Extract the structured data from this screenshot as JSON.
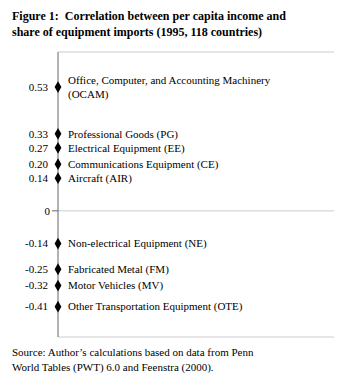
{
  "chart_data": {
    "type": "scatter",
    "title": "Figure 1:  Correlation between per capita income and\nshare of equipment imports (1995, 118 countries)",
    "categories": [
      "Office, Computer, and Accounting Machinery\n(OCAM)",
      "Professional Goods (PG)",
      "Electrical Equipment (EE)",
      "Communications Equipment (CE)",
      "Aircraft (AIR)",
      "Non-electrical Equipment (NE)",
      "Fabricated Metal (FM)",
      "Motor Vehicles (MV)",
      "Other Transportation Equipment (OTE)"
    ],
    "values": [
      0.53,
      0.33,
      0.27,
      0.2,
      0.14,
      -0.14,
      -0.25,
      -0.32,
      -0.41
    ],
    "value_labels": [
      "0.53",
      "0.33",
      "0.27",
      "0.20",
      "0.14",
      "-0.14",
      "-0.25",
      "-0.32",
      "-0.41"
    ],
    "data_labels": true,
    "ylim": [
      -0.54,
      0.68
    ],
    "yticks": [
      0
    ],
    "grid": true,
    "tick_labels": "y",
    "marker": "diamond",
    "color": "#000000",
    "annotations": [
      "Source: Author’s calculations based on data from Penn\nWorld Tables (PWT) 6.0 and Feenstra (2000)."
    ]
  }
}
